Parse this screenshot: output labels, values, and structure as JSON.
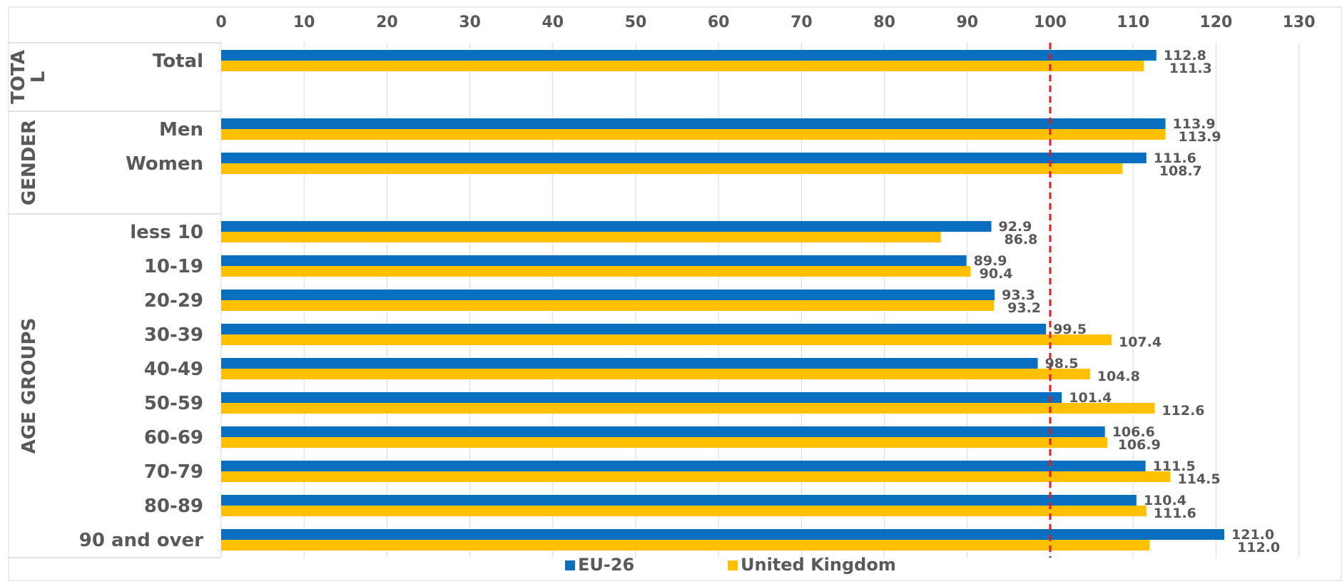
{
  "chart_data": {
    "type": "bar",
    "orientation": "horizontal",
    "title": "",
    "xlabel": "",
    "ylabel": "",
    "xlim": [
      0,
      130
    ],
    "ticks": [
      0,
      10,
      20,
      30,
      40,
      50,
      60,
      70,
      80,
      90,
      100,
      110,
      120,
      130
    ],
    "grid": true,
    "legend_position": "bottom",
    "reference_line": {
      "value": 100,
      "color": "#e31a1c",
      "style": "dashed"
    },
    "groups": [
      {
        "label": "TOTA\nL",
        "categories": [
          "Total"
        ]
      },
      {
        "label": "GENDER",
        "categories": [
          "Men",
          "Women"
        ]
      },
      {
        "label": "AGE GROUPS",
        "categories": [
          "less 10",
          "10-19",
          "20-29",
          "30-39",
          "40-49",
          "50-59",
          "60-69",
          "70-79",
          "80-89",
          "90 and over"
        ]
      }
    ],
    "categories": [
      "Total",
      "Men",
      "Women",
      "less 10",
      "10-19",
      "20-29",
      "30-39",
      "40-49",
      "50-59",
      "60-69",
      "70-79",
      "80-89",
      "90 and over"
    ],
    "series": [
      {
        "name": "EU-26",
        "color": "#0a6fbf",
        "values": [
          112.8,
          113.9,
          111.6,
          92.9,
          89.9,
          93.3,
          99.5,
          98.5,
          101.4,
          106.6,
          111.5,
          110.4,
          121.0
        ]
      },
      {
        "name": "United Kingdom",
        "color": "#ffc000",
        "values": [
          111.3,
          113.9,
          108.7,
          86.8,
          90.4,
          93.2,
          107.4,
          104.8,
          112.6,
          106.9,
          114.5,
          111.6,
          112.0
        ]
      }
    ]
  }
}
